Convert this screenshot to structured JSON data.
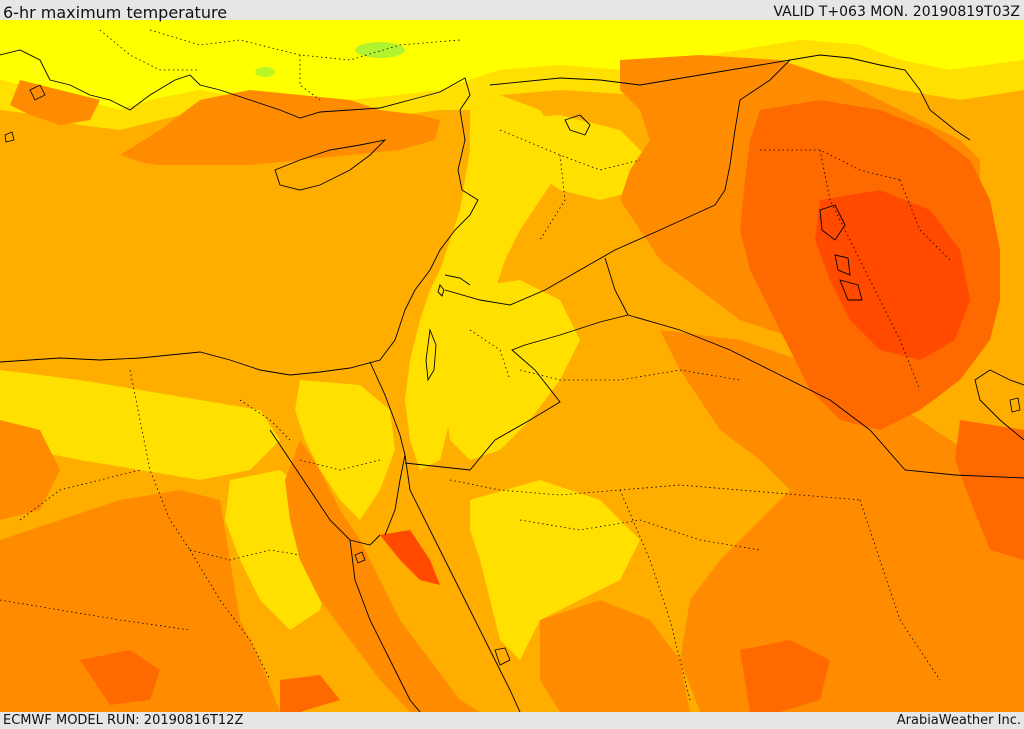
{
  "header": {
    "title": "6-hr maximum temperature",
    "valid": "VALID T+063 MON. 20190819T03Z"
  },
  "footer": {
    "model_run": "ECMWF MODEL RUN: 20190816T12Z",
    "credit": "ArabiaWeather Inc."
  },
  "colors": {
    "yellow": "#ffff00",
    "light_yellow": "#ffe000",
    "amber": "#ffae00",
    "orange": "#ff8c00",
    "dark_orange": "#ff6a00",
    "red_orange": "#ff4a00",
    "green_hint": "#90ee40"
  }
}
